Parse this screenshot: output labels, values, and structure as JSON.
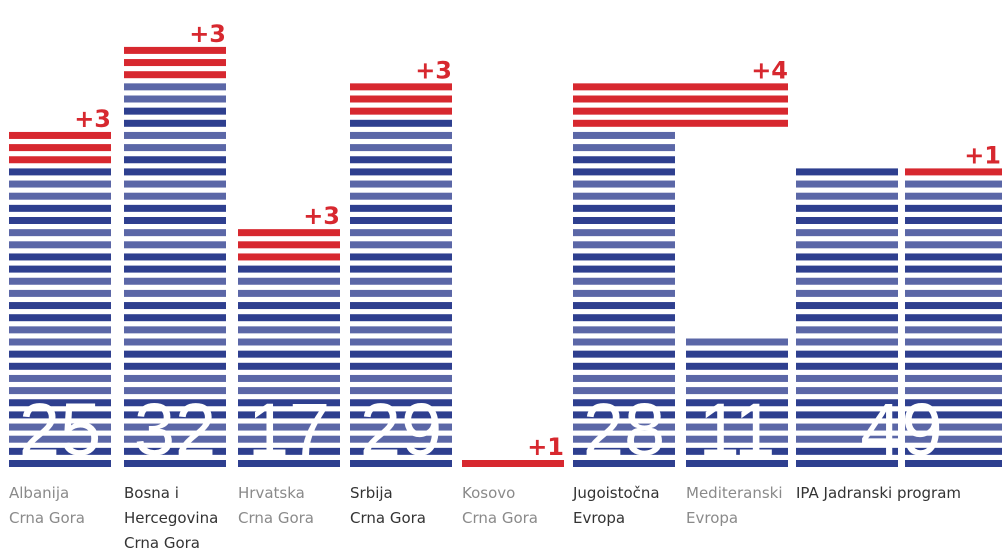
{
  "chart_data": {
    "type": "striped-bar",
    "categories": [
      [
        "Albanija",
        "Crna Gora"
      ],
      [
        "Bosna i",
        "Hercegovina",
        "Crna Gora"
      ],
      [
        "Hrvatska",
        "Crna Gora"
      ],
      [
        "Srbija",
        "Crna Gora"
      ],
      [
        "Kosovo",
        "Crna Gora"
      ],
      [
        "Jugoistočna",
        "Evropa"
      ],
      [
        "Mediteranski",
        "Evropa"
      ],
      [
        "IPA Jadranski program"
      ]
    ],
    "values": [
      25,
      32,
      17,
      29,
      0,
      28,
      11,
      49
    ],
    "added": [
      3,
      3,
      3,
      3,
      1,
      4,
      null,
      1
    ],
    "added_labels": [
      "+3",
      "+3",
      "+3",
      "+3",
      "+1",
      "+4",
      null,
      "+1"
    ],
    "color": "#2e3f8f",
    "color_light": "#5b67a7",
    "added_color": "#d7282f"
  }
}
